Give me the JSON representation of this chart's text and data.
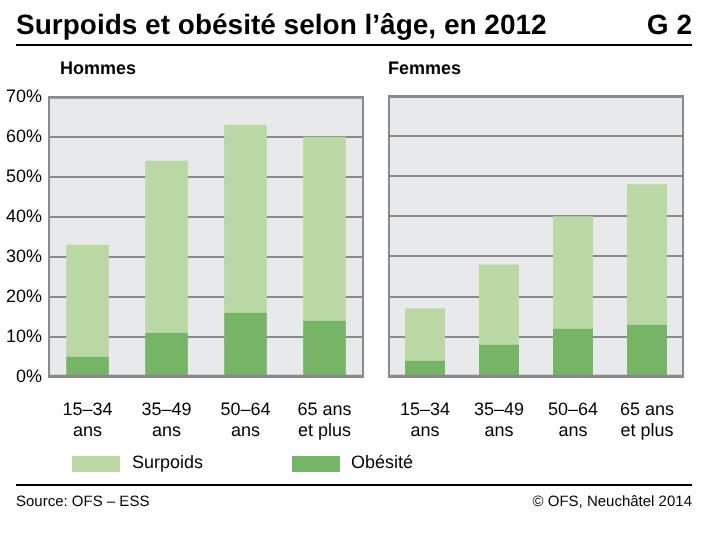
{
  "chart_data": [
    {
      "type": "bar",
      "title": "Surpoids et obésité selon l’âge, en 2012",
      "subtitle": "Hommes",
      "stacked": true,
      "categories": [
        "15–34 ans",
        "35–49 ans",
        "50–64 ans",
        "65 ans et plus"
      ],
      "series": [
        {
          "name": "Obésité",
          "color": "#76b466",
          "values": [
            5,
            11,
            16,
            14
          ]
        },
        {
          "name": "Surpoids",
          "color": "#b9d8a3",
          "values": [
            28,
            43,
            47,
            46
          ]
        }
      ],
      "ylim": [
        0,
        70
      ],
      "yticks": [
        {
          "value": 0,
          "label": "0%"
        },
        {
          "value": 10,
          "label": "10%"
        },
        {
          "value": 20,
          "label": "20%"
        },
        {
          "value": 30,
          "label": "30%"
        },
        {
          "value": 40,
          "label": "40%"
        },
        {
          "value": 50,
          "label": "50%"
        },
        {
          "value": 60,
          "label": "60%"
        },
        {
          "value": 70,
          "label": "70%"
        }
      ],
      "grid": "y",
      "legend": "bottom",
      "annotations": [
        "G 2",
        "Source: OFS – ESS",
        "© OFS, Neuchâtel 2014"
      ]
    },
    {
      "type": "bar",
      "subtitle": "Femmes",
      "stacked": true,
      "categories": [
        "15–34 ans",
        "35–49 ans",
        "50–64 ans",
        "65 ans et plus"
      ],
      "series": [
        {
          "color": "#76b466",
          "values": [
            4,
            8,
            12,
            13
          ]
        },
        {
          "color": "#b9d8a3",
          "values": [
            13,
            20,
            28,
            35
          ]
        }
      ],
      "ylim": [
        0,
        70
      ],
      "yticks": [
        0,
        10,
        20,
        30,
        40,
        50,
        60,
        70
      ],
      "grid": "y",
      "tick_labels": "x"
    }
  ]
}
